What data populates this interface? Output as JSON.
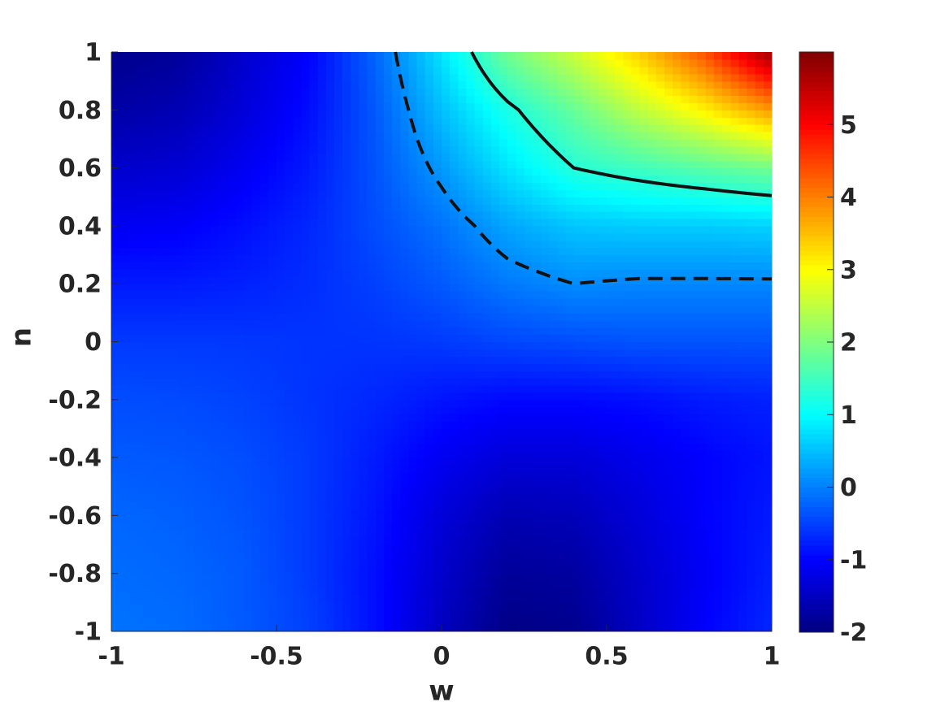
{
  "chart_data": {
    "type": "contour",
    "xlabel": "w",
    "ylabel": "n",
    "x": [
      -1,
      -0.8,
      -0.6,
      -0.4,
      -0.2,
      0,
      0.2,
      0.4,
      0.6,
      0.8,
      1
    ],
    "y": [
      -1,
      -0.8,
      -0.6,
      -0.4,
      -0.2,
      0,
      0.2,
      0.4,
      0.6,
      0.8,
      1
    ],
    "z": [
      [
        -0.1,
        -0.15,
        -0.3,
        -0.5,
        -0.9,
        -1.5,
        -1.95,
        -1.9,
        -1.45,
        -1.0,
        -0.7
      ],
      [
        -0.15,
        -0.2,
        -0.3,
        -0.55,
        -0.9,
        -1.4,
        -1.8,
        -1.75,
        -1.4,
        -1.05,
        -0.75
      ],
      [
        -0.2,
        -0.25,
        -0.35,
        -0.55,
        -0.85,
        -1.3,
        -1.6,
        -1.55,
        -1.3,
        -1.0,
        -0.8
      ],
      [
        -0.3,
        -0.32,
        -0.4,
        -0.55,
        -0.8,
        -1.1,
        -1.3,
        -1.3,
        -1.15,
        -1.0,
        -0.85
      ],
      [
        -0.4,
        -0.42,
        -0.48,
        -0.6,
        -0.7,
        -0.85,
        -0.95,
        -0.95,
        -0.9,
        -0.8,
        -0.75
      ],
      [
        -0.55,
        -0.55,
        -0.57,
        -0.6,
        -0.6,
        -0.55,
        -0.45,
        -0.4,
        -0.35,
        -0.35,
        -0.35
      ],
      [
        -0.8,
        -0.8,
        -0.75,
        -0.65,
        -0.5,
        -0.3,
        -0.05,
        0.1,
        0.05,
        0.05,
        0.05
      ],
      [
        -1.1,
        -1.05,
        -0.9,
        -0.7,
        -0.4,
        -0.1,
        0.3,
        0.55,
        0.6,
        0.6,
        0.65
      ],
      [
        -1.4,
        -1.35,
        -1.1,
        -0.8,
        -0.35,
        0.2,
        0.8,
        1.3,
        1.5,
        1.7,
        1.9
      ],
      [
        -1.7,
        -1.6,
        -1.3,
        -0.9,
        -0.3,
        0.5,
        1.2,
        1.8,
        2.5,
        3.1,
        3.8
      ],
      [
        -1.9,
        -1.8,
        -1.4,
        -1.0,
        -0.2,
        0.8,
        1.9,
        2.6,
        3.4,
        4.4,
        5.8
      ]
    ],
    "contours": [
      {
        "level": 1.3,
        "style": "solid"
      },
      {
        "level": 0.1,
        "style": "dashed"
      }
    ],
    "colormap": "jet",
    "xlim": [
      -1,
      1
    ],
    "xticks": [
      -1,
      -0.5,
      0,
      0.5,
      1
    ],
    "ylim": [
      -1,
      1
    ],
    "yticks": [
      -1,
      -0.8,
      -0.6,
      -0.4,
      -0.2,
      0,
      0.2,
      0.4,
      0.6,
      0.8,
      1
    ],
    "clim": [
      -2,
      6
    ],
    "cticks": [
      -2,
      -1,
      0,
      1,
      2,
      3,
      4,
      5
    ]
  }
}
